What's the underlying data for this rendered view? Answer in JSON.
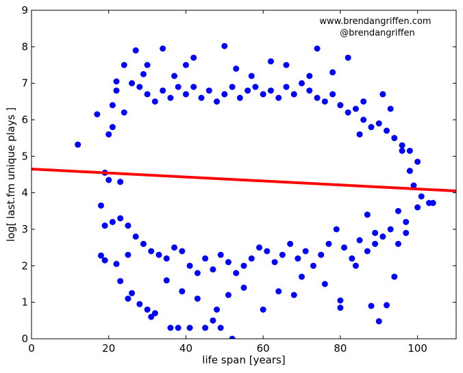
{
  "chart_data": {
    "type": "scatter",
    "xlabel": "life span [years]",
    "ylabel": "log[ last.fm unique plays ]",
    "xlim": [
      0,
      110
    ],
    "ylim": [
      0,
      9
    ],
    "xticks": [
      0,
      20,
      40,
      60,
      80,
      100
    ],
    "yticks": [
      0,
      1,
      2,
      3,
      4,
      5,
      6,
      7,
      8,
      9
    ],
    "grid": false,
    "annotations": [
      "www.brendangriffen.com",
      "@brendangriffen"
    ],
    "point_color": "#0000ff",
    "fit_color": "#ff0000",
    "fit_line": {
      "x": [
        0,
        110
      ],
      "y": [
        4.65,
        4.05
      ]
    },
    "sample_points": [
      [
        12,
        5.32
      ],
      [
        17,
        6.15
      ],
      [
        18,
        3.65
      ],
      [
        18,
        2.28
      ],
      [
        19,
        2.15
      ],
      [
        19,
        4.55
      ],
      [
        20,
        4.35
      ],
      [
        21,
        6.4
      ],
      [
        22,
        2.05
      ],
      [
        22,
        7.05
      ],
      [
        23,
        1.58
      ],
      [
        23,
        4.3
      ],
      [
        24,
        7.5
      ],
      [
        25,
        2.3
      ],
      [
        25,
        1.1
      ],
      [
        26,
        1.25
      ],
      [
        27,
        7.9
      ],
      [
        28,
        0.95
      ],
      [
        29,
        7.25
      ],
      [
        30,
        0.8
      ],
      [
        30,
        7.5
      ],
      [
        31,
        0.6
      ],
      [
        32,
        0.7
      ],
      [
        34,
        7.95
      ],
      [
        35,
        1.6
      ],
      [
        36,
        0.3
      ],
      [
        37,
        7.2
      ],
      [
        38,
        0.3
      ],
      [
        39,
        1.3
      ],
      [
        40,
        7.5
      ],
      [
        41,
        0.3
      ],
      [
        42,
        7.7
      ],
      [
        43,
        1.1
      ],
      [
        45,
        0.3
      ],
      [
        47,
        0.5
      ],
      [
        48,
        0.8
      ],
      [
        49,
        0.3
      ],
      [
        50,
        8.02
      ],
      [
        51,
        1.2
      ],
      [
        52,
        0.0
      ],
      [
        53,
        7.4
      ],
      [
        55,
        1.4
      ],
      [
        57,
        7.2
      ],
      [
        60,
        0.8
      ],
      [
        62,
        7.6
      ],
      [
        64,
        1.3
      ],
      [
        66,
        7.5
      ],
      [
        68,
        1.2
      ],
      [
        70,
        1.7
      ],
      [
        72,
        7.2
      ],
      [
        74,
        7.95
      ],
      [
        76,
        1.5
      ],
      [
        78,
        7.3
      ],
      [
        80,
        0.85
      ],
      [
        80,
        1.05
      ],
      [
        82,
        7.7
      ],
      [
        84,
        2.0
      ],
      [
        86,
        6.5
      ],
      [
        88,
        0.9
      ],
      [
        90,
        0.48
      ],
      [
        92,
        0.92
      ],
      [
        94,
        1.7
      ],
      [
        96,
        5.15
      ],
      [
        98,
        5.15
      ],
      [
        100,
        4.85
      ],
      [
        103,
        3.72
      ],
      [
        104,
        3.72
      ],
      [
        97,
        2.9
      ],
      [
        95,
        2.6
      ],
      [
        93,
        6.3
      ],
      [
        91,
        6.7
      ],
      [
        89,
        2.9
      ],
      [
        87,
        3.4
      ],
      [
        85,
        5.6
      ],
      [
        83,
        2.2
      ],
      [
        81,
        2.5
      ],
      [
        79,
        3.0
      ],
      [
        77,
        2.6
      ],
      [
        75,
        2.3
      ],
      [
        73,
        2.0
      ],
      [
        71,
        2.4
      ],
      [
        69,
        2.2
      ],
      [
        67,
        2.6
      ],
      [
        65,
        2.3
      ],
      [
        63,
        2.1
      ],
      [
        61,
        2.4
      ],
      [
        59,
        2.5
      ],
      [
        57,
        2.2
      ],
      [
        55,
        2.0
      ],
      [
        53,
        1.8
      ],
      [
        51,
        2.1
      ],
      [
        49,
        2.3
      ],
      [
        47,
        1.9
      ],
      [
        45,
        2.2
      ],
      [
        43,
        1.8
      ],
      [
        41,
        2.0
      ],
      [
        39,
        2.4
      ],
      [
        37,
        2.5
      ],
      [
        35,
        2.2
      ],
      [
        33,
        2.3
      ],
      [
        31,
        2.4
      ],
      [
        29,
        2.6
      ],
      [
        27,
        2.8
      ],
      [
        25,
        3.1
      ],
      [
        23,
        3.3
      ],
      [
        21,
        3.2
      ],
      [
        19,
        3.1
      ],
      [
        20,
        5.6
      ],
      [
        21,
        5.8
      ],
      [
        22,
        6.8
      ],
      [
        24,
        6.2
      ],
      [
        26,
        7.0
      ],
      [
        28,
        6.9
      ],
      [
        30,
        6.7
      ],
      [
        32,
        6.5
      ],
      [
        34,
        6.8
      ],
      [
        36,
        6.6
      ],
      [
        38,
        6.9
      ],
      [
        40,
        6.7
      ],
      [
        42,
        6.9
      ],
      [
        44,
        6.6
      ],
      [
        46,
        6.8
      ],
      [
        48,
        6.5
      ],
      [
        50,
        6.7
      ],
      [
        52,
        6.9
      ],
      [
        54,
        6.6
      ],
      [
        56,
        6.8
      ],
      [
        58,
        6.9
      ],
      [
        60,
        6.7
      ],
      [
        62,
        6.8
      ],
      [
        64,
        6.6
      ],
      [
        66,
        6.9
      ],
      [
        68,
        6.7
      ],
      [
        70,
        7.0
      ],
      [
        72,
        6.8
      ],
      [
        74,
        6.6
      ],
      [
        76,
        6.5
      ],
      [
        78,
        6.7
      ],
      [
        80,
        6.4
      ],
      [
        82,
        6.2
      ],
      [
        84,
        6.3
      ],
      [
        86,
        6.0
      ],
      [
        88,
        5.8
      ],
      [
        90,
        5.9
      ],
      [
        92,
        5.7
      ],
      [
        94,
        5.5
      ],
      [
        96,
        5.3
      ],
      [
        98,
        4.6
      ],
      [
        99,
        4.2
      ],
      [
        100,
        3.6
      ],
      [
        101,
        3.9
      ],
      [
        97,
        3.2
      ],
      [
        95,
        3.5
      ],
      [
        93,
        3.0
      ],
      [
        91,
        2.8
      ],
      [
        89,
        2.6
      ],
      [
        87,
        2.4
      ],
      [
        85,
        2.7
      ]
    ]
  }
}
